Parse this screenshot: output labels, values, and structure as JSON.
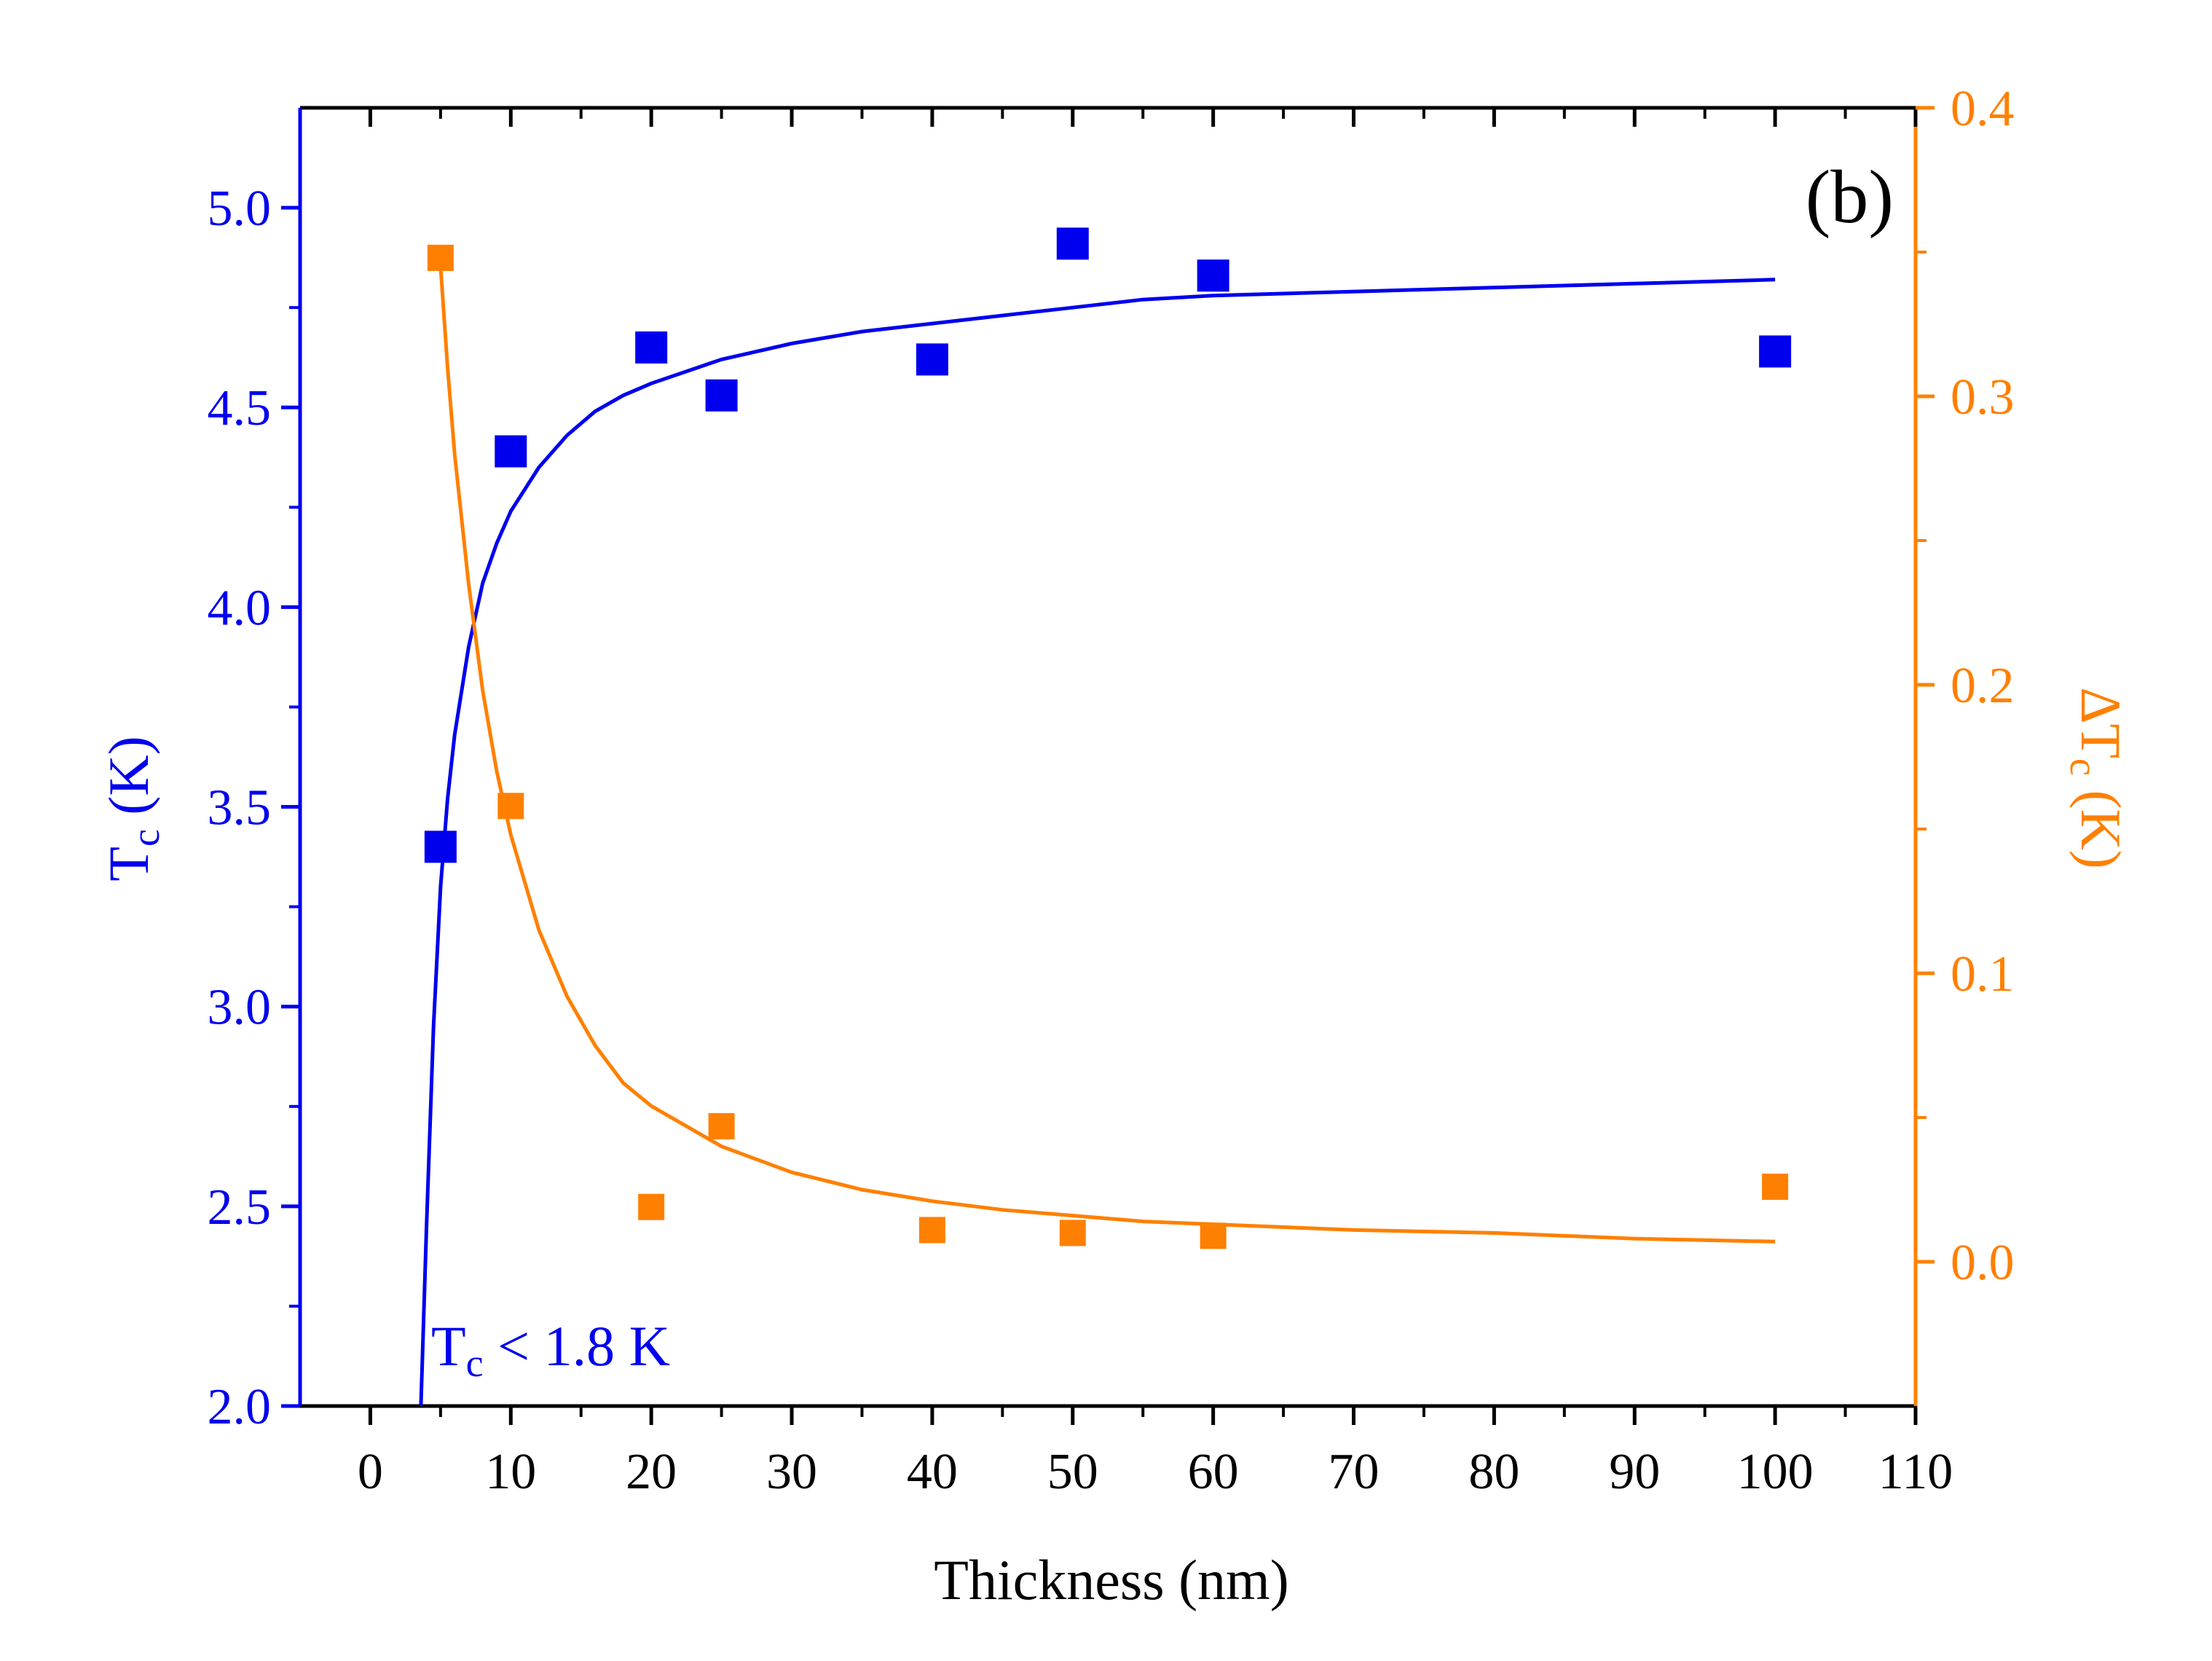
{
  "colors": {
    "tc": "#0000ee",
    "delta_tc": "#ff8000",
    "axis": "#000000"
  },
  "chart_data": {
    "type": "scatter",
    "panel_label": "(b)",
    "xlabel": "Thickness (nm)",
    "x_ticks": [
      0,
      10,
      20,
      30,
      40,
      50,
      60,
      70,
      80,
      90,
      100,
      110
    ],
    "xlim": [
      -5,
      110
    ],
    "y_left": {
      "label_main": "T",
      "label_sub": "c",
      "label_unit": " (K)",
      "ylim": [
        2.0,
        5.25
      ],
      "ticks": [
        "2.0",
        "2.5",
        "3.0",
        "3.5",
        "4.0",
        "4.5",
        "5.0"
      ]
    },
    "y_right": {
      "label_main": "ΔT",
      "label_sub": "c",
      "label_unit": " (K)",
      "ylim": [
        -0.05,
        0.4
      ],
      "ticks": [
        "0.0",
        "0.1",
        "0.2",
        "0.3",
        "0.4"
      ]
    },
    "series": [
      {
        "axis": "left",
        "marker": "square",
        "x": [
          5,
          10,
          20,
          25,
          40,
          50,
          60,
          100
        ],
        "values": [
          3.4,
          4.39,
          4.65,
          4.53,
          4.62,
          4.91,
          4.83,
          4.64
        ]
      },
      {
        "axis": "right",
        "marker": "square",
        "x": [
          5,
          10,
          20,
          25,
          40,
          50,
          60,
          100
        ],
        "values": [
          0.348,
          0.158,
          0.019,
          0.047,
          0.011,
          0.01,
          0.009,
          0.026
        ]
      }
    ],
    "fits": [
      {
        "axis": "left",
        "x": [
          3.6,
          4,
          4.5,
          5,
          5.5,
          6,
          7,
          8,
          9,
          10,
          12,
          14,
          16,
          18,
          20,
          25,
          30,
          35,
          40,
          45,
          50,
          55,
          60,
          70,
          80,
          90,
          100
        ],
        "values": [
          2.0,
          2.45,
          2.95,
          3.3,
          3.52,
          3.68,
          3.9,
          4.06,
          4.16,
          4.24,
          4.35,
          4.43,
          4.49,
          4.53,
          4.56,
          4.62,
          4.66,
          4.69,
          4.71,
          4.73,
          4.75,
          4.77,
          4.78,
          4.79,
          4.8,
          4.81,
          4.82
        ]
      },
      {
        "axis": "right",
        "x": [
          5,
          5.5,
          6,
          7,
          8,
          9,
          10,
          12,
          14,
          16,
          18,
          20,
          25,
          30,
          35,
          40,
          45,
          50,
          55,
          60,
          70,
          80,
          90,
          100
        ],
        "values": [
          0.345,
          0.31,
          0.28,
          0.235,
          0.198,
          0.17,
          0.148,
          0.115,
          0.092,
          0.075,
          0.062,
          0.054,
          0.04,
          0.031,
          0.025,
          0.021,
          0.018,
          0.016,
          0.014,
          0.013,
          0.011,
          0.01,
          0.008,
          0.007
        ]
      }
    ],
    "annotations": [
      {
        "main": "T",
        "sub": "c",
        "rest": " < 1.8 K",
        "x": 5,
        "y_left": 2.0
      }
    ],
    "grid": false
  }
}
